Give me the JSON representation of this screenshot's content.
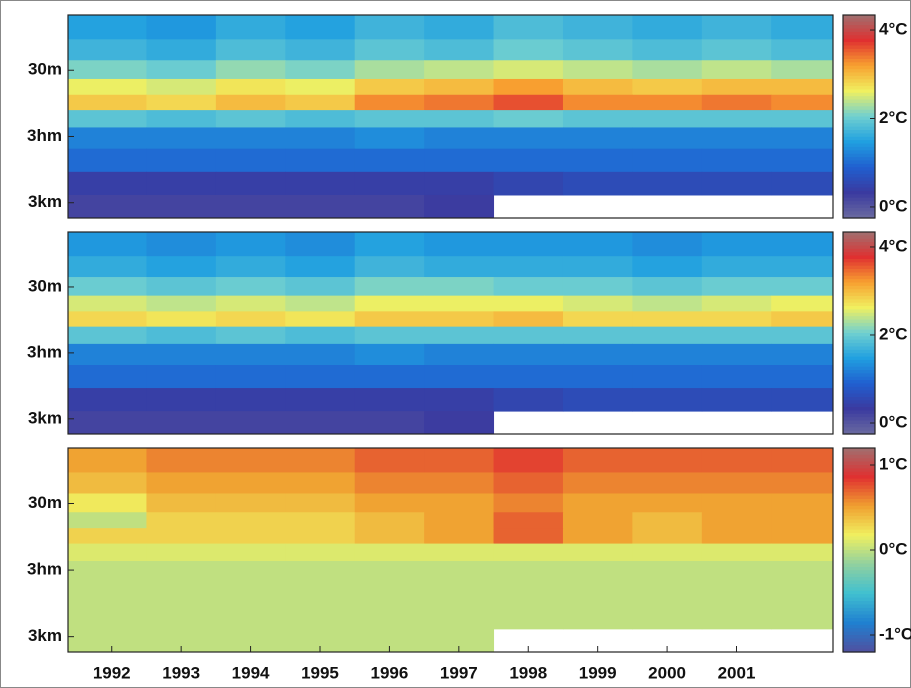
{
  "chart_data": [
    {
      "type": "heatmap",
      "ylog": true,
      "yinvert": true,
      "xlim": [
        1991.87,
        2002.89
      ],
      "ylim": [
        4.4,
        5100
      ],
      "yticks": [
        {
          "value": 30,
          "label": "30m"
        },
        {
          "value": 300,
          "label": "3hm"
        },
        {
          "value": 3000,
          "label": "3km"
        }
      ],
      "x": [
        1992.5,
        1993.5,
        1994.5,
        1995.5,
        1996.5,
        1997.5,
        1998.5,
        1999.5,
        2000.5,
        2001.5,
        2002.5
      ],
      "y": [
        7,
        15,
        30,
        55,
        90,
        160,
        300,
        700,
        1500,
        3500
      ],
      "z": [
        [
          1.5,
          1.4,
          1.6,
          1.5,
          1.7,
          1.6,
          1.8,
          1.7,
          1.6,
          1.7,
          1.6
        ],
        [
          1.7,
          1.6,
          1.8,
          1.7,
          1.9,
          1.8,
          2.0,
          1.9,
          1.8,
          1.9,
          1.8
        ],
        [
          2.1,
          2.0,
          2.2,
          2.1,
          2.3,
          2.4,
          2.5,
          2.4,
          2.3,
          2.4,
          2.3
        ],
        [
          2.6,
          2.5,
          2.7,
          2.6,
          2.9,
          3.0,
          3.2,
          3.0,
          2.9,
          3.0,
          3.0
        ],
        [
          2.9,
          2.8,
          3.0,
          2.9,
          3.3,
          3.4,
          3.6,
          3.3,
          3.3,
          3.4,
          3.3
        ],
        [
          1.9,
          1.8,
          1.9,
          1.8,
          1.9,
          1.9,
          2.0,
          1.9,
          1.9,
          1.9,
          1.9
        ],
        [
          1.2,
          1.2,
          1.2,
          1.2,
          1.3,
          1.2,
          1.2,
          1.2,
          1.2,
          1.2,
          1.2
        ],
        [
          1.0,
          1.0,
          1.0,
          1.0,
          1.0,
          1.0,
          1.0,
          1.0,
          1.0,
          1.0,
          1.0
        ],
        [
          0.4,
          0.4,
          0.4,
          0.4,
          0.4,
          0.4,
          0.5,
          0.6,
          0.6,
          0.6,
          0.6
        ],
        [
          0.2,
          0.2,
          0.2,
          0.2,
          0.2,
          0.3,
          null,
          null,
          null,
          null,
          null
        ]
      ],
      "clim": [
        -0.25,
        4.34
      ],
      "cticks": [
        {
          "value": 0,
          "label": "0°C"
        },
        {
          "value": 2,
          "label": "2°C"
        },
        {
          "value": 4,
          "label": "4°C"
        }
      ],
      "colormap": [
        "#6a6aa0",
        "#3a3aa0",
        "#2060d0",
        "#20a0e0",
        "#70d0d0",
        "#f0f060",
        "#f8a030",
        "#e03030",
        "#a07070"
      ]
    },
    {
      "type": "heatmap",
      "ylog": true,
      "yinvert": true,
      "xlim": [
        1991.87,
        2002.89
      ],
      "ylim": [
        4.4,
        5100
      ],
      "yticks": [
        {
          "value": 30,
          "label": "30m"
        },
        {
          "value": 300,
          "label": "3hm"
        },
        {
          "value": 3000,
          "label": "3km"
        }
      ],
      "x": [
        1992.5,
        1993.5,
        1994.5,
        1995.5,
        1996.5,
        1997.5,
        1998.5,
        1999.5,
        2000.5,
        2001.5,
        2002.5
      ],
      "y": [
        7,
        15,
        30,
        55,
        90,
        160,
        300,
        700,
        1500,
        3500
      ],
      "z": [
        [
          1.4,
          1.3,
          1.4,
          1.3,
          1.5,
          1.4,
          1.4,
          1.4,
          1.3,
          1.4,
          1.4
        ],
        [
          1.6,
          1.5,
          1.6,
          1.5,
          1.7,
          1.6,
          1.6,
          1.6,
          1.5,
          1.6,
          1.6
        ],
        [
          2.0,
          1.9,
          2.0,
          1.9,
          2.1,
          2.1,
          2.0,
          2.0,
          1.9,
          2.0,
          2.0
        ],
        [
          2.5,
          2.4,
          2.5,
          2.4,
          2.6,
          2.6,
          2.6,
          2.5,
          2.4,
          2.5,
          2.6
        ],
        [
          2.8,
          2.7,
          2.8,
          2.7,
          2.9,
          2.9,
          3.0,
          2.8,
          2.8,
          2.8,
          2.9
        ],
        [
          1.9,
          1.8,
          1.9,
          1.8,
          1.9,
          1.9,
          1.9,
          1.9,
          1.9,
          1.9,
          1.9
        ],
        [
          1.2,
          1.2,
          1.2,
          1.2,
          1.3,
          1.2,
          1.2,
          1.2,
          1.2,
          1.2,
          1.2
        ],
        [
          1.0,
          1.0,
          1.0,
          1.0,
          1.0,
          1.0,
          1.0,
          1.0,
          1.0,
          1.0,
          1.0
        ],
        [
          0.4,
          0.4,
          0.4,
          0.4,
          0.4,
          0.4,
          0.5,
          0.6,
          0.6,
          0.6,
          0.6
        ],
        [
          0.2,
          0.2,
          0.2,
          0.2,
          0.2,
          0.3,
          null,
          null,
          null,
          null,
          null
        ]
      ],
      "clim": [
        -0.25,
        4.34
      ],
      "cticks": [
        {
          "value": 0,
          "label": "0°C"
        },
        {
          "value": 2,
          "label": "2°C"
        },
        {
          "value": 4,
          "label": "4°C"
        }
      ],
      "colormap": [
        "#6a6aa0",
        "#3a3aa0",
        "#2060d0",
        "#20a0e0",
        "#70d0d0",
        "#f0f060",
        "#f8a030",
        "#e03030",
        "#a07070"
      ]
    },
    {
      "type": "heatmap",
      "ylog": true,
      "yinvert": true,
      "xlim": [
        1991.87,
        2002.89
      ],
      "ylim": [
        4.4,
        5100
      ],
      "yticks": [
        {
          "value": 30,
          "label": "30m"
        },
        {
          "value": 300,
          "label": "3hm"
        },
        {
          "value": 3000,
          "label": "3km"
        }
      ],
      "xticks": [
        {
          "value": 1992.5,
          "label": "1992"
        },
        {
          "value": 1993.5,
          "label": "1993"
        },
        {
          "value": 1994.5,
          "label": "1994"
        },
        {
          "value": 1995.5,
          "label": "1995"
        },
        {
          "value": 1996.5,
          "label": "1996"
        },
        {
          "value": 1997.5,
          "label": "1997"
        },
        {
          "value": 1998.5,
          "label": "1998"
        },
        {
          "value": 1999.5,
          "label": "1999"
        },
        {
          "value": 2000.5,
          "label": "2000"
        },
        {
          "value": 2001.5,
          "label": "2001"
        }
      ],
      "x": [
        1992.5,
        1993.5,
        1994.5,
        1995.5,
        1996.5,
        1997.5,
        1998.5,
        1999.5,
        2000.5,
        2001.5,
        2002.5
      ],
      "y": [
        7,
        15,
        30,
        55,
        90,
        160,
        300,
        700,
        1500,
        3500
      ],
      "z": [
        [
          0.5,
          0.6,
          0.6,
          0.6,
          0.7,
          0.7,
          0.8,
          0.7,
          0.7,
          0.7,
          0.7
        ],
        [
          0.4,
          0.5,
          0.5,
          0.5,
          0.6,
          0.6,
          0.7,
          0.6,
          0.6,
          0.6,
          0.6
        ],
        [
          0.2,
          0.4,
          0.4,
          0.4,
          0.5,
          0.5,
          0.6,
          0.5,
          0.5,
          0.5,
          0.5
        ],
        [
          0.0,
          0.3,
          0.3,
          0.3,
          0.4,
          0.5,
          0.7,
          0.5,
          0.4,
          0.5,
          0.5
        ],
        [
          0.3,
          0.3,
          0.3,
          0.3,
          0.4,
          0.5,
          0.7,
          0.5,
          0.4,
          0.5,
          0.5
        ],
        [
          0.1,
          0.1,
          0.1,
          0.1,
          0.1,
          0.1,
          0.1,
          0.1,
          0.1,
          0.1,
          0.1
        ],
        [
          0.0,
          0.0,
          0.0,
          0.0,
          0.0,
          0.0,
          0.0,
          0.0,
          0.0,
          0.0,
          0.0
        ],
        [
          0.0,
          0.0,
          0.0,
          0.0,
          0.0,
          0.0,
          0.0,
          0.0,
          0.0,
          0.0,
          0.0
        ],
        [
          0.0,
          0.0,
          0.0,
          0.0,
          0.0,
          0.0,
          0.0,
          0.0,
          0.0,
          0.0,
          0.0
        ],
        [
          0.0,
          0.0,
          0.0,
          0.0,
          0.0,
          0.0,
          null,
          null,
          null,
          null,
          null
        ]
      ],
      "clim": [
        -1.2,
        1.2
      ],
      "cticks": [
        {
          "value": -1,
          "label": "-1°C"
        },
        {
          "value": 0,
          "label": "0°C"
        },
        {
          "value": 1,
          "label": "1°C"
        }
      ],
      "colormap": [
        "#5050a0",
        "#2080d0",
        "#40c0d0",
        "#90d0a0",
        "#f0f060",
        "#f0a030",
        "#e03030",
        "#a07070"
      ]
    }
  ]
}
